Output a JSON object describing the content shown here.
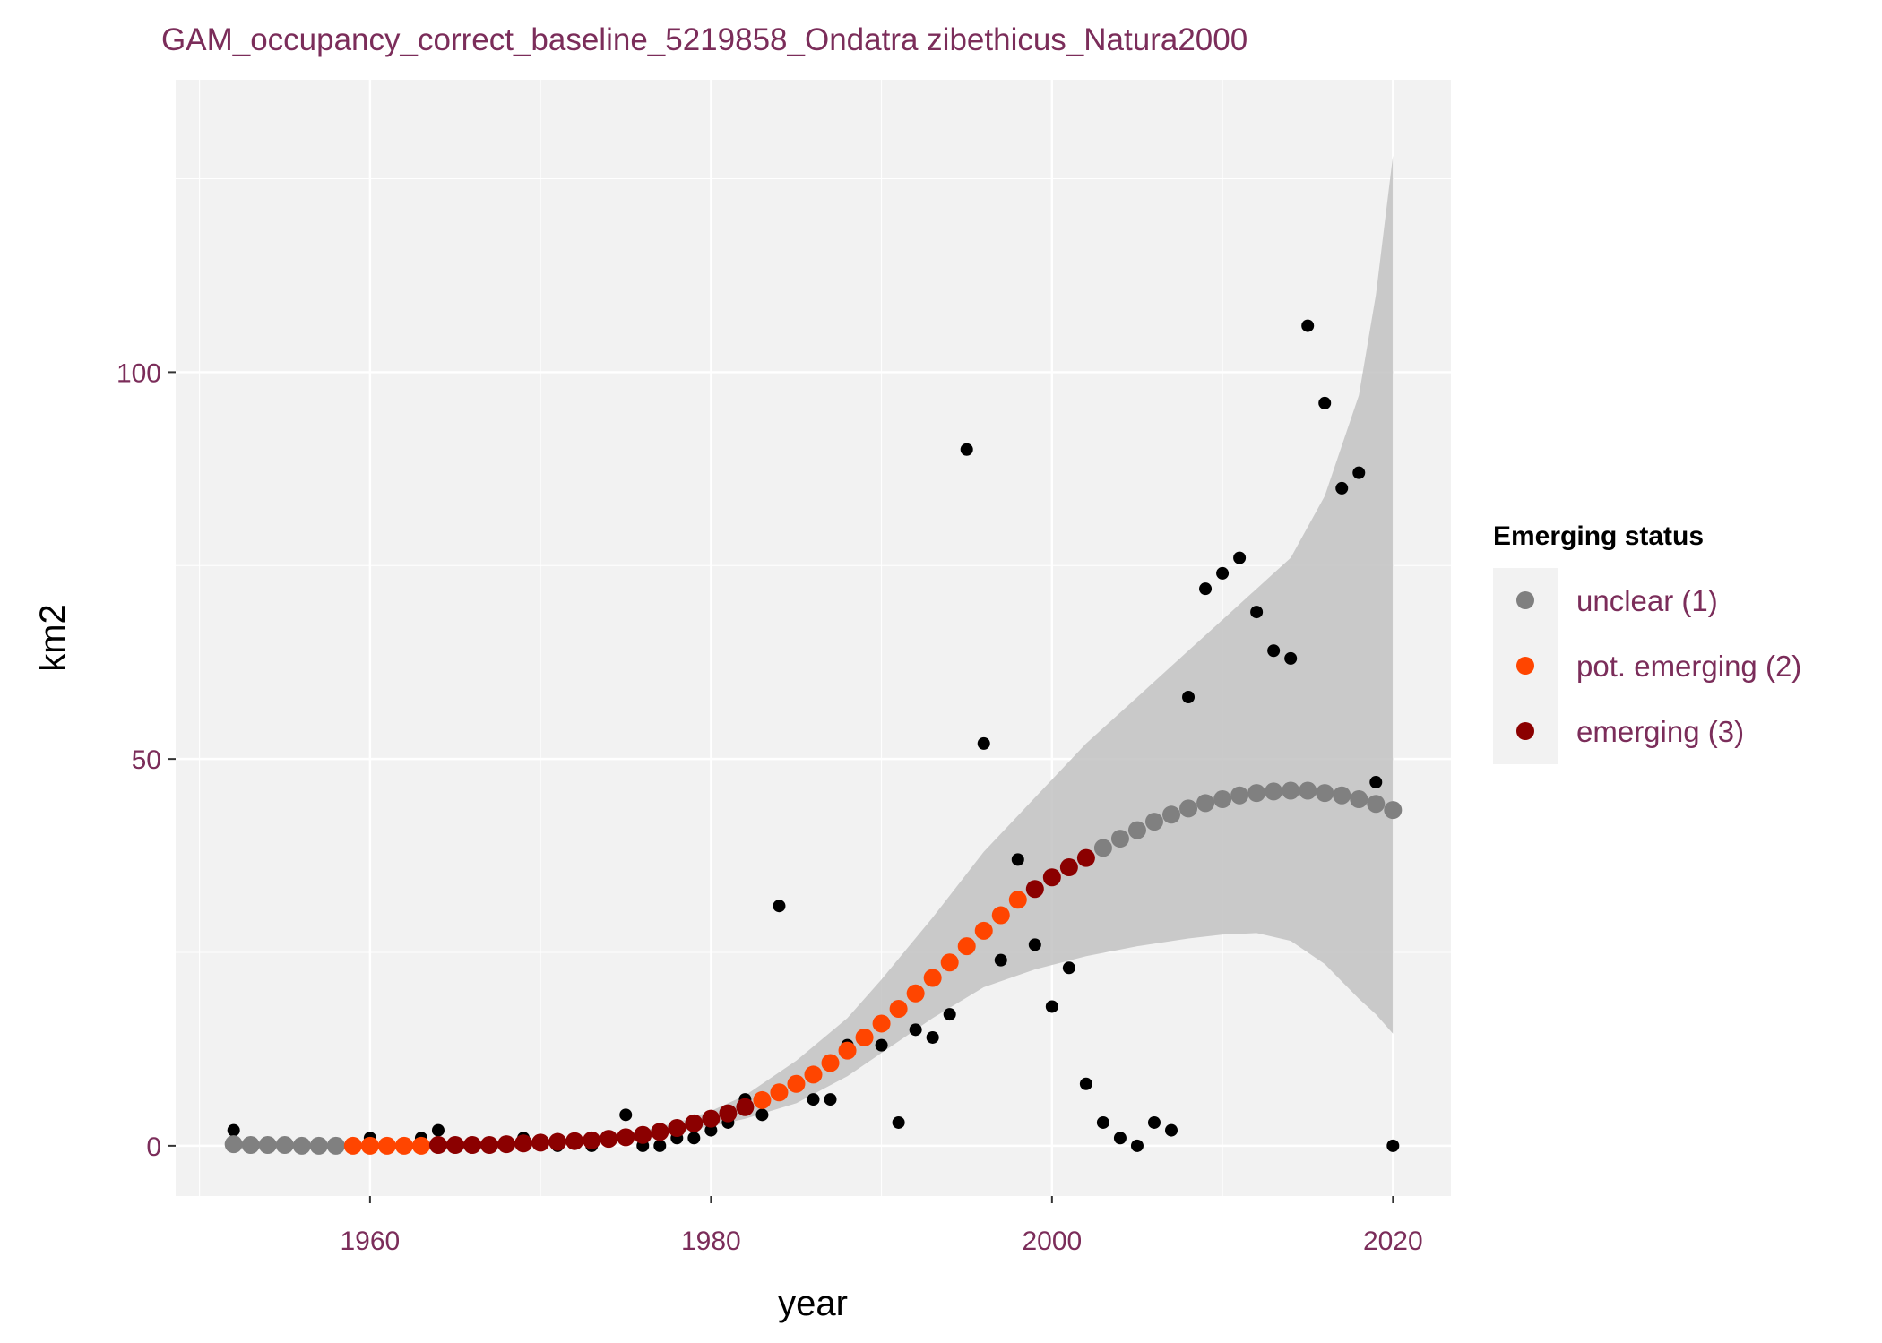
{
  "chart_data": {
    "type": "scatter",
    "title": "GAM_occupancy_correct_baseline_5219858_Ondatra zibethicus_Natura2000",
    "xlabel": "year",
    "ylabel": "km2",
    "xlim": [
      1948.6,
      2023.4
    ],
    "ylim": [
      -6.5,
      137.8
    ],
    "x_ticks": [
      1960,
      1980,
      2000,
      2020
    ],
    "y_ticks": [
      0,
      50,
      100
    ],
    "grid": true,
    "legend": {
      "title": "Emerging status",
      "placement": "right",
      "entries": [
        {
          "label": "unclear (1)",
          "color": "#808080"
        },
        {
          "label": "pot. emerging (2)",
          "color": "#ff4500"
        },
        {
          "label": "emerging (3)",
          "color": "#8b0000"
        }
      ]
    },
    "colors": {
      "title": "#7b2d5a",
      "tick_labels": "#7b2d5a",
      "legend_labels": "#7b2d5a",
      "panel_background": "#f2f2f2",
      "grid": "#ffffff",
      "ribbon": "#bebebe",
      "observed": "#000000"
    },
    "observed": {
      "x": [
        1952,
        1960,
        1963,
        1964,
        1969,
        1971,
        1973,
        1975,
        1976,
        1977,
        1978,
        1979,
        1980,
        1981,
        1982,
        1983,
        1984,
        1986,
        1987,
        1988,
        1990,
        1991,
        1992,
        1993,
        1994,
        1995,
        1996,
        1997,
        1998,
        1999,
        2000,
        2001,
        2002,
        2003,
        2004,
        2005,
        2006,
        2007,
        2008,
        2009,
        2010,
        2011,
        2012,
        2013,
        2014,
        2015,
        2016,
        2017,
        2018,
        2019,
        2020
      ],
      "y": [
        2,
        1,
        1,
        2,
        1,
        0,
        0,
        4,
        0,
        0,
        1,
        1,
        2,
        3,
        6,
        4,
        31,
        6,
        6,
        13,
        13,
        3,
        15,
        14,
        17,
        90,
        52,
        24,
        37,
        26,
        18,
        23,
        8,
        3,
        1,
        0,
        3,
        2,
        58,
        72,
        74,
        76,
        69,
        64,
        63,
        106,
        96,
        85,
        87,
        47,
        0
      ]
    },
    "fitted": {
      "x": [
        1952,
        1953,
        1954,
        1955,
        1956,
        1957,
        1958,
        1959,
        1960,
        1961,
        1962,
        1963,
        1964,
        1965,
        1966,
        1967,
        1968,
        1969,
        1970,
        1971,
        1972,
        1973,
        1974,
        1975,
        1976,
        1977,
        1978,
        1979,
        1980,
        1981,
        1982,
        1983,
        1984,
        1985,
        1986,
        1987,
        1988,
        1989,
        1990,
        1991,
        1992,
        1993,
        1994,
        1995,
        1996,
        1997,
        1998,
        1999,
        2000,
        2001,
        2002,
        2003,
        2004,
        2005,
        2006,
        2007,
        2008,
        2009,
        2010,
        2011,
        2012,
        2013,
        2014,
        2015,
        2016,
        2017,
        2018,
        2019,
        2020
      ],
      "y": [
        0.2,
        0.1,
        0.1,
        0.1,
        0,
        0,
        0,
        0,
        0,
        0,
        0,
        0,
        0.1,
        0.1,
        0.1,
        0.1,
        0.2,
        0.3,
        0.4,
        0.5,
        0.6,
        0.7,
        0.9,
        1.1,
        1.4,
        1.8,
        2.3,
        2.9,
        3.5,
        4.2,
        5,
        5.9,
        6.9,
        8,
        9.2,
        10.7,
        12.3,
        14,
        15.8,
        17.7,
        19.7,
        21.7,
        23.7,
        25.8,
        27.8,
        29.8,
        31.8,
        33.2,
        34.7,
        36,
        37.2,
        38.5,
        39.7,
        40.8,
        41.9,
        42.8,
        43.6,
        44.3,
        44.8,
        45.3,
        45.6,
        45.8,
        45.9,
        45.9,
        45.6,
        45.3,
        44.8,
        44.2,
        43.4
      ],
      "status": [
        1,
        1,
        1,
        1,
        1,
        1,
        1,
        2,
        2,
        2,
        2,
        2,
        3,
        3,
        3,
        3,
        3,
        3,
        3,
        3,
        3,
        3,
        3,
        3,
        3,
        3,
        3,
        3,
        3,
        3,
        3,
        2,
        2,
        2,
        2,
        2,
        2,
        2,
        2,
        2,
        2,
        2,
        2,
        2,
        2,
        2,
        2,
        3,
        3,
        3,
        3,
        1,
        1,
        1,
        1,
        1,
        1,
        1,
        1,
        1,
        1,
        1,
        1,
        1,
        1,
        1,
        1,
        1,
        1
      ]
    },
    "confidence_band": {
      "x": [
        1952,
        1956,
        1960,
        1965,
        1970,
        1975,
        1978,
        1980,
        1982,
        1985,
        1988,
        1990,
        1993,
        1996,
        1999,
        2002,
        2005,
        2008,
        2010,
        2012,
        2014,
        2016,
        2018,
        2019,
        2020
      ],
      "lower": [
        0,
        0,
        0,
        0,
        0.2,
        0.9,
        1.8,
        2.5,
        3.5,
        5.5,
        9,
        12,
        16.5,
        20.5,
        22.8,
        24.5,
        25.8,
        26.8,
        27.3,
        27.5,
        26.5,
        23.5,
        19,
        17,
        14.5
      ],
      "upper": [
        0.5,
        0.2,
        0.2,
        0.3,
        0.6,
        1.5,
        3,
        4.5,
        6.5,
        11,
        16.5,
        21.5,
        29.5,
        38,
        45,
        52,
        58,
        64,
        68,
        72,
        76,
        84,
        97,
        110,
        128
      ]
    }
  }
}
